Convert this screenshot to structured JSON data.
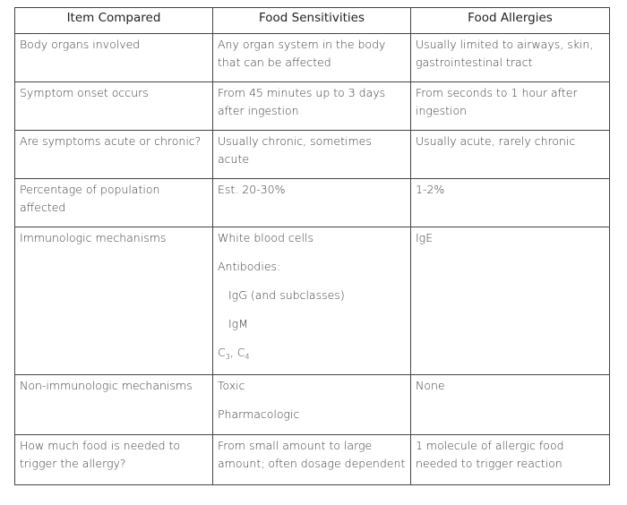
{
  "table": {
    "headers": [
      "Item Compared",
      "Food Sensitivities",
      "Food Allergies"
    ],
    "rows": [
      {
        "item": "Body organs involved",
        "sensitivities": "Any organ system in the body that can be affected",
        "allergies": "Usually limited to airways, skin, gastrointestinal tract"
      },
      {
        "item": "Symptom onset occurs",
        "sensitivities": "From 45 minutes up to 3 days after ingestion",
        "allergies": "From seconds to 1 hour after ingestion"
      },
      {
        "item": "Are symptoms acute or chronic?",
        "sensitivities": "Usually chronic, sometimes acute",
        "allergies": "Usually acute, rarely chronic"
      },
      {
        "item": "Percentage of population affected",
        "sensitivities": "Est. 20-30%",
        "allergies": "1-2%"
      },
      {
        "item": "Immunologic mechanisms",
        "sensitivities_lines": {
          "white_blood_cells": "White blood cells",
          "antibodies": "Antibodies:",
          "igg": "IgG (and subclasses)",
          "igm": "IgM",
          "c_prefix": "C",
          "c3_sub": "3",
          "c_sep": ", C",
          "c4_sub": "4"
        },
        "allergies": "IgE"
      },
      {
        "item": "Non-immunologic mechanisms",
        "sensitivities_lines": {
          "toxic": "Toxic",
          "pharmacologic": "Pharmacologic"
        },
        "allergies": "None"
      },
      {
        "item": "How much food is needed to trigger the allergy?",
        "sensitivities": "From small amount to large amount; often dosage dependent",
        "allergies": "1 molecule of allergic food needed to trigger reaction"
      }
    ]
  }
}
